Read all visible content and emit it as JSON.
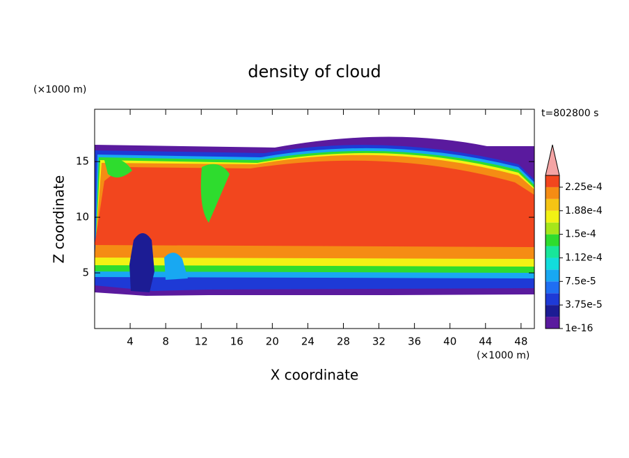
{
  "chart_data": {
    "type": "contour",
    "title": "density of cloud",
    "x_label": "X coordinate",
    "y_label": "Z coordinate",
    "x_unit": "(×1000 m)",
    "y_unit": "(×1000 m)",
    "annotation": "t=802800 s",
    "xlim": [
      0,
      49.5
    ],
    "ylim": [
      0,
      19.7
    ],
    "xticks": [
      4,
      8,
      12,
      16,
      20,
      24,
      28,
      32,
      36,
      40,
      44,
      48
    ],
    "yticks": [
      5,
      10,
      15
    ],
    "colorbar": {
      "levels": [
        1e-16,
        1.875e-05,
        3.75e-05,
        5.625e-05,
        7.5e-05,
        9.375e-05,
        0.0001125,
        0.00013125,
        0.00015,
        0.00016875,
        0.0001875,
        0.00020625,
        0.000225,
        0.00024375
      ],
      "colors": [
        "#5a1a9e",
        "#1c1c94",
        "#1e3ad6",
        "#1f6ef2",
        "#18a8f2",
        "#12dcdc",
        "#18e69a",
        "#2edc2e",
        "#a6e61a",
        "#f2f214",
        "#f5c414",
        "#f58c14",
        "#f2461e"
      ],
      "over_color": "#f4a4a4",
      "ticks": [
        {
          "value": 1e-16,
          "label": "1e-16"
        },
        {
          "value": 3.75e-05,
          "label": "3.75e-5"
        },
        {
          "value": 7.5e-05,
          "label": "7.5e-5"
        },
        {
          "value": 0.0001125,
          "label": "1.12e-4"
        },
        {
          "value": 0.00015,
          "label": "1.5e-4"
        },
        {
          "value": 0.0001875,
          "label": "1.88e-4"
        },
        {
          "value": 0.000225,
          "label": "2.25e-4"
        }
      ]
    }
  }
}
